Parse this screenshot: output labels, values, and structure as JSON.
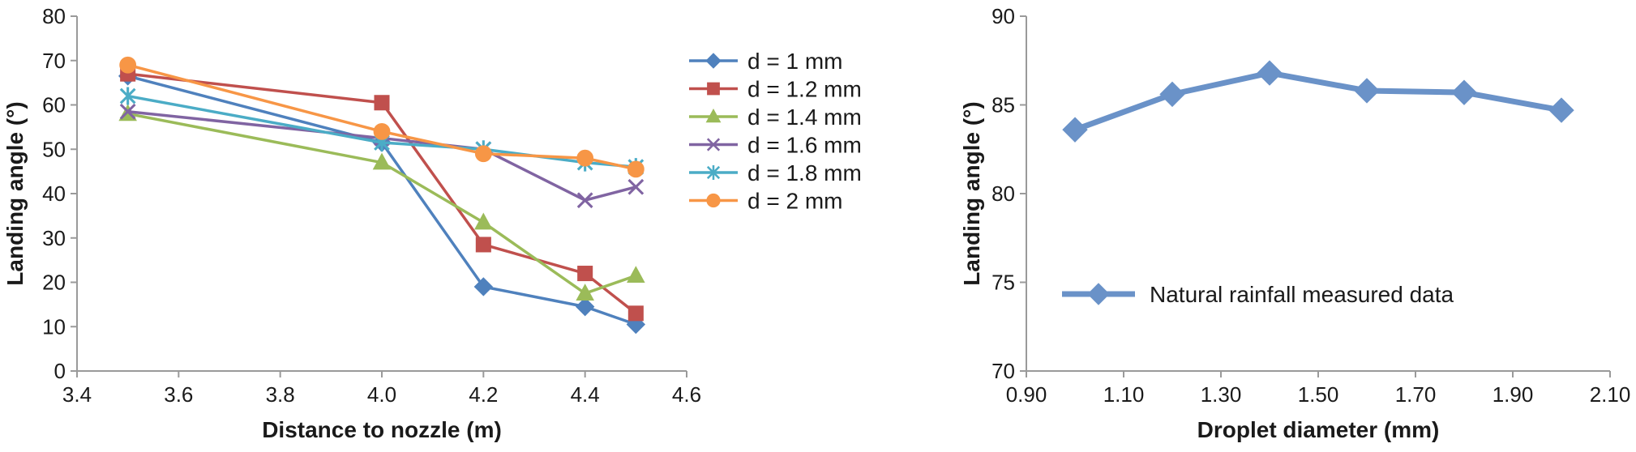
{
  "chart_data": [
    {
      "type": "line",
      "title": "",
      "xlabel": "Distance to nozzle (m)",
      "ylabel": "Landing angle (°)",
      "xlim": [
        3.4,
        4.6
      ],
      "ylim": [
        0,
        80
      ],
      "xticks": [
        "3.4",
        "3.6",
        "3.8",
        "4.0",
        "4.2",
        "4.4",
        "4.6"
      ],
      "yticks": [
        "0",
        "10",
        "20",
        "30",
        "40",
        "50",
        "60",
        "70",
        "80"
      ],
      "grid": false,
      "legend_position": "right",
      "x": [
        3.5,
        4.0,
        4.2,
        4.4,
        4.5
      ],
      "series": [
        {
          "name": "d = 1 mm",
          "color": "#4f81bd",
          "marker": "diamond",
          "values": [
            66.5,
            51.5,
            19,
            14.5,
            10.5
          ]
        },
        {
          "name": "d = 1.2 mm",
          "color": "#c0504d",
          "marker": "square",
          "values": [
            67,
            60.5,
            28.5,
            22,
            13
          ]
        },
        {
          "name": "d = 1.4 mm",
          "color": "#9bbb59",
          "marker": "triangle",
          "values": [
            58,
            47,
            33.5,
            17.5,
            21.5
          ]
        },
        {
          "name": "d = 1.6 mm",
          "color": "#8064a2",
          "marker": "x",
          "values": [
            58.5,
            52.5,
            50,
            38.5,
            41.5
          ]
        },
        {
          "name": "d = 1.8 mm",
          "color": "#4bacc6",
          "marker": "star",
          "values": [
            62,
            51.5,
            50,
            47,
            46
          ]
        },
        {
          "name": "d = 2 mm",
          "color": "#f79646",
          "marker": "circle",
          "values": [
            69,
            54,
            49,
            48,
            45.5
          ]
        }
      ]
    },
    {
      "type": "line",
      "title": "",
      "xlabel": "Droplet diameter (mm)",
      "ylabel": "Landing angle (°)",
      "xlim": [
        0.9,
        2.1
      ],
      "ylim": [
        70,
        90
      ],
      "xticks": [
        "0.90",
        "1.10",
        "1.30",
        "1.50",
        "1.70",
        "1.90",
        "2.10"
      ],
      "yticks": [
        "70",
        "75",
        "80",
        "85",
        "90"
      ],
      "grid": false,
      "legend_position": "left",
      "x": [
        1.0,
        1.2,
        1.4,
        1.6,
        1.8,
        2.0
      ],
      "series": [
        {
          "name": "Natural rainfall measured data",
          "color": "#6a92c8",
          "marker": "diamond",
          "values": [
            83.6,
            85.6,
            86.8,
            85.8,
            85.7,
            84.7
          ]
        }
      ]
    }
  ]
}
